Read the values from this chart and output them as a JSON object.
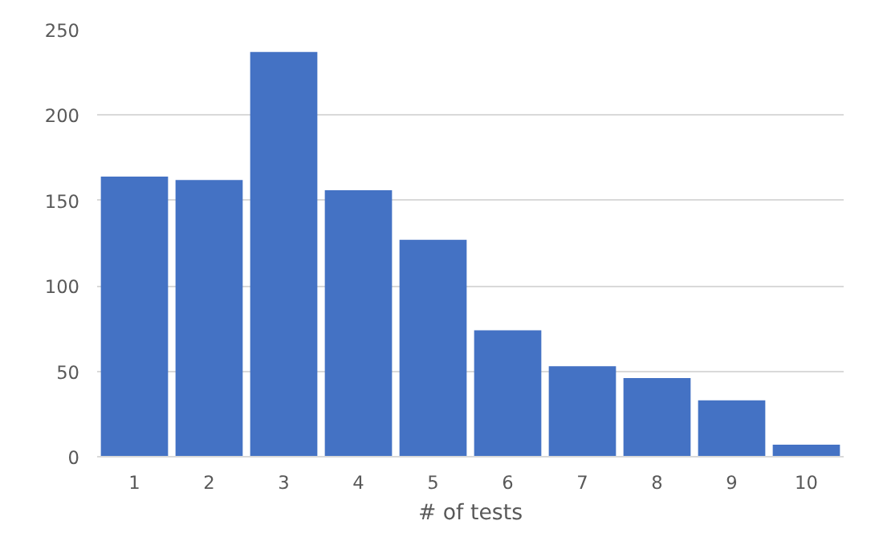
{
  "chart_data": {
    "type": "bar",
    "xlabel": "# of tests",
    "categories": [
      "1",
      "2",
      "3",
      "4",
      "5",
      "6",
      "7",
      "8",
      "9",
      "10"
    ],
    "values": [
      164,
      162,
      237,
      156,
      127,
      74,
      53,
      46,
      33,
      7
    ],
    "color": "#4472c4",
    "ylim": [
      0,
      250
    ],
    "yticks": [
      0,
      50,
      100,
      150,
      200,
      250
    ],
    "grid": "y"
  }
}
